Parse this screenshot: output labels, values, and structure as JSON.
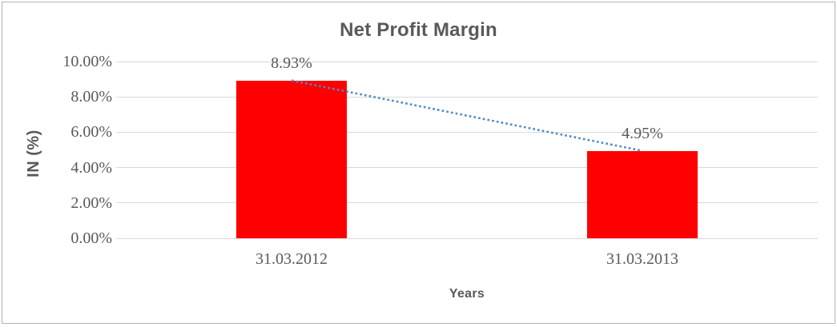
{
  "chart_data": {
    "type": "bar",
    "title": "Net Profit Margin",
    "xlabel": "Years",
    "ylabel": "IN (%)",
    "categories": [
      "31.03.2012",
      "31.03.2013"
    ],
    "values": [
      8.93,
      4.95
    ],
    "value_labels": [
      "8.93%",
      "4.95%"
    ],
    "ylim": [
      0,
      10
    ],
    "yticks": [
      {
        "value": 0,
        "label": "0.00%"
      },
      {
        "value": 2,
        "label": "2.00%"
      },
      {
        "value": 4,
        "label": "4.00%"
      },
      {
        "value": 6,
        "label": "6.00%"
      },
      {
        "value": 8,
        "label": "8.00%"
      },
      {
        "value": 10,
        "label": "10.00%"
      }
    ],
    "grid": true,
    "legend": "none",
    "bar_color": "#FF0000",
    "trendline": {
      "style": "dotted",
      "color": "#4E8AC8",
      "from": 8.93,
      "to": 4.95
    },
    "colors": {
      "grid": "#D9D9D9",
      "text": "#595959",
      "border": "#B3B3B3",
      "background": "#FFFFFF"
    }
  }
}
